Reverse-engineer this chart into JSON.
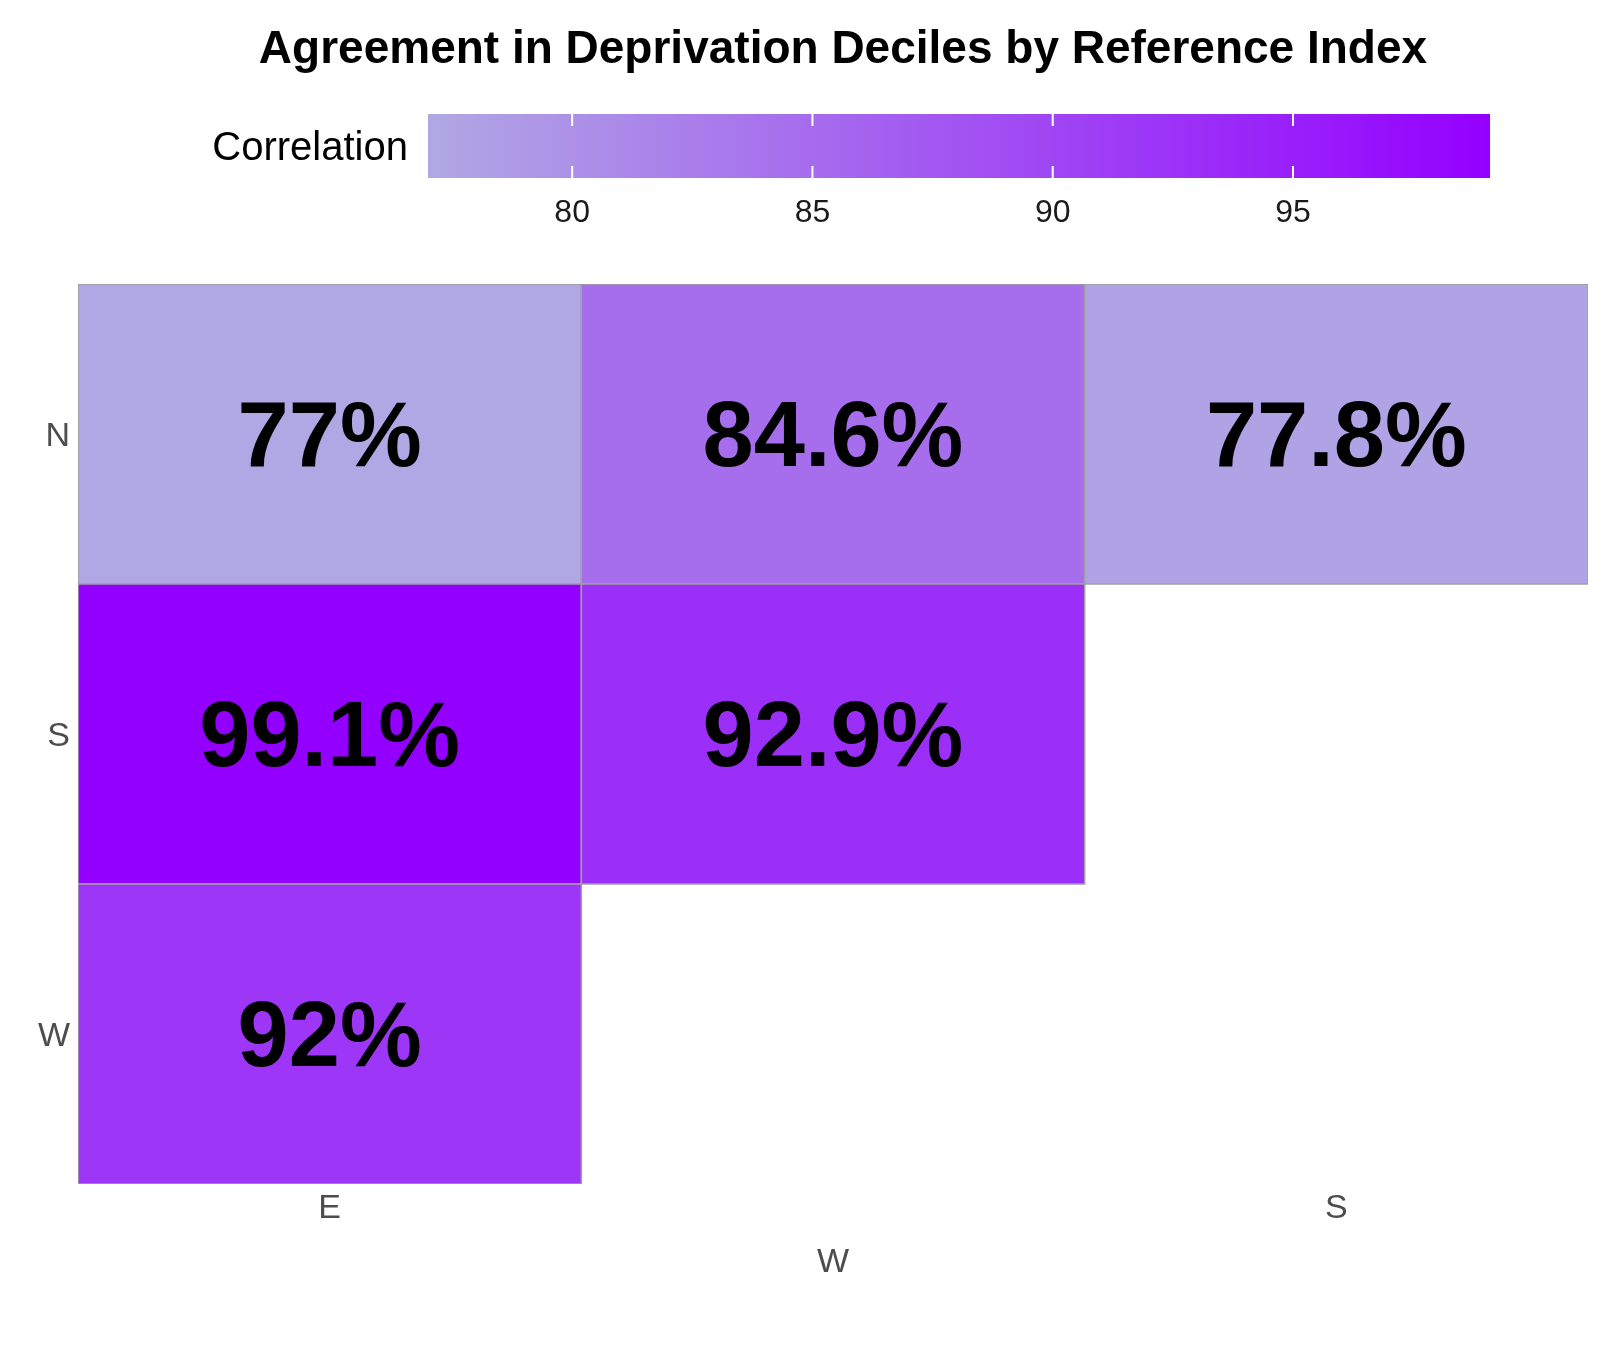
{
  "chart_data": {
    "type": "heatmap",
    "title": "Agreement in Deprivation Deciles by Reference Index",
    "clabel": "Correlation",
    "categories": [
      "E",
      "W",
      "S"
    ],
    "y_categories": [
      "N",
      "S",
      "W"
    ],
    "cells": [
      [
        77,
        84.6,
        77.8
      ],
      [
        99.1,
        92.9,
        null
      ],
      [
        92,
        null,
        null
      ]
    ],
    "cell_labels": [
      [
        "77%",
        "84.6%",
        "77.8%"
      ],
      [
        "99.1%",
        "92.9%",
        null
      ],
      [
        "92%",
        null,
        null
      ]
    ],
    "colors": [
      "#b0a8e4",
      "#9400ff"
    ],
    "clim": [
      77,
      99.1
    ],
    "cticks": [
      80,
      85,
      90,
      95
    ]
  }
}
